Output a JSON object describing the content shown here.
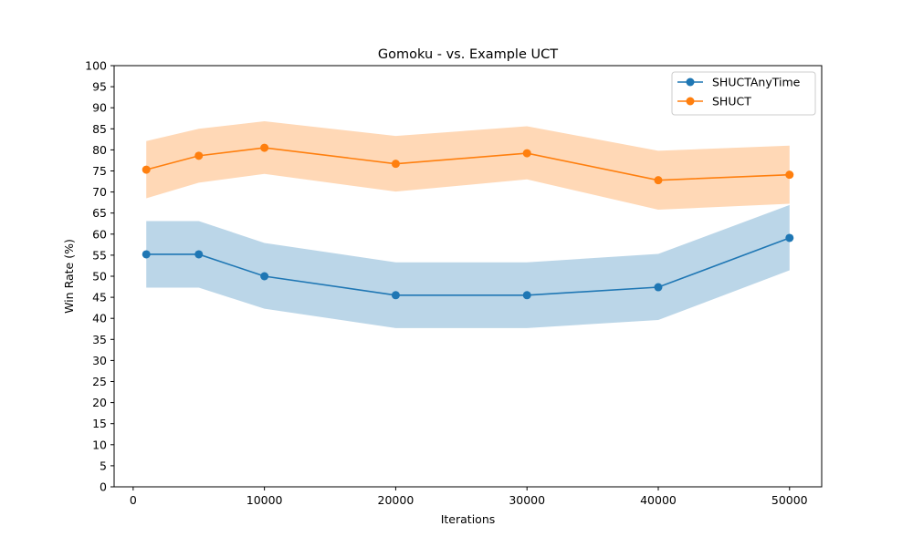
{
  "chart_data": {
    "type": "line",
    "title": "Gomoku - vs. Example UCT",
    "xlabel": "Iterations",
    "ylabel": "Win Rate (%)",
    "xlim": [
      -1450,
      52450
    ],
    "ylim": [
      0,
      100
    ],
    "x_ticks": [
      0,
      10000,
      20000,
      30000,
      40000,
      50000
    ],
    "y_ticks": [
      0,
      5,
      10,
      15,
      20,
      25,
      30,
      35,
      40,
      45,
      50,
      55,
      60,
      65,
      70,
      75,
      80,
      85,
      90,
      95,
      100
    ],
    "grid": false,
    "legend_position": "top-right",
    "x": [
      1000,
      5000,
      10000,
      20000,
      30000,
      40000,
      50000
    ],
    "series": [
      {
        "name": "SHUCTAnyTime",
        "color": "#1f77b4",
        "band_color": "#1f77b4",
        "values": [
          55.2,
          55.2,
          50.0,
          45.5,
          45.5,
          47.4,
          59.1
        ],
        "lower": [
          47.3,
          47.3,
          42.3,
          37.7,
          37.7,
          39.6,
          51.4
        ],
        "upper": [
          63.1,
          63.1,
          57.9,
          53.3,
          53.3,
          55.3,
          66.9
        ]
      },
      {
        "name": "SHUCT",
        "color": "#ff7f0e",
        "band_color": "#ff7f0e",
        "values": [
          75.3,
          78.6,
          80.5,
          76.7,
          79.2,
          72.8,
          74.1
        ],
        "lower": [
          68.5,
          72.2,
          74.3,
          70.1,
          73.0,
          65.8,
          67.2
        ],
        "upper": [
          82.1,
          85.0,
          86.8,
          83.3,
          85.6,
          79.8,
          81.0
        ]
      }
    ]
  }
}
